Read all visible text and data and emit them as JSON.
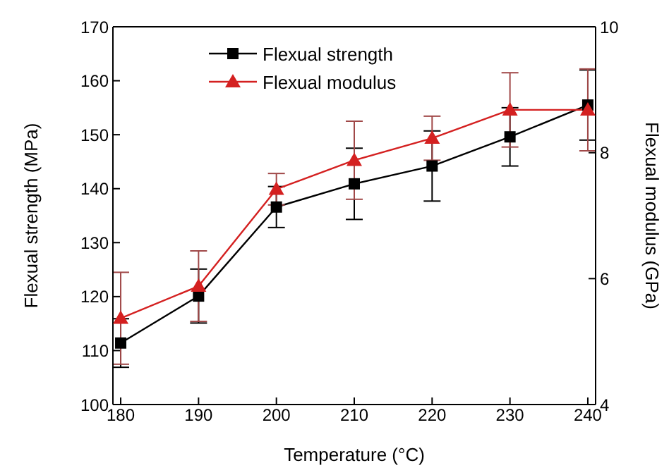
{
  "chart_data": {
    "type": "line",
    "xlabel": "Temperature (°C)",
    "ylabel": "Flexual strength (MPa)",
    "y2label": "Flexual modulus (GPa)",
    "x": [
      180,
      190,
      200,
      210,
      220,
      230,
      240
    ],
    "series": [
      {
        "name": "Flexual strength",
        "color": "#000000",
        "marker": "square",
        "values": [
          111.4,
          120.1,
          136.6,
          140.9,
          144.2,
          149.6,
          155.5
        ],
        "errors": [
          4.5,
          5,
          3.8,
          6.6,
          6.5,
          5.4,
          6.5
        ]
      },
      {
        "name": "Flexual modulus",
        "color": "#d42020",
        "marker": "triangle",
        "axis": "y2",
        "values": [
          5.37,
          5.88,
          7.42,
          7.88,
          8.23,
          8.68,
          8.68
        ],
        "errors": [
          0.73,
          0.56,
          0.25,
          0.62,
          0.35,
          0.59,
          0.65
        ]
      }
    ],
    "xlim": [
      179,
      241
    ],
    "xticks": [
      180,
      190,
      200,
      210,
      220,
      230,
      240
    ],
    "ylim": [
      100,
      170
    ],
    "yticks": [
      100,
      110,
      120,
      130,
      140,
      150,
      160,
      170
    ],
    "y2lim": [
      4,
      10
    ],
    "y2ticks": [
      4,
      6,
      8,
      10
    ],
    "grid": false,
    "legend": "top left"
  }
}
